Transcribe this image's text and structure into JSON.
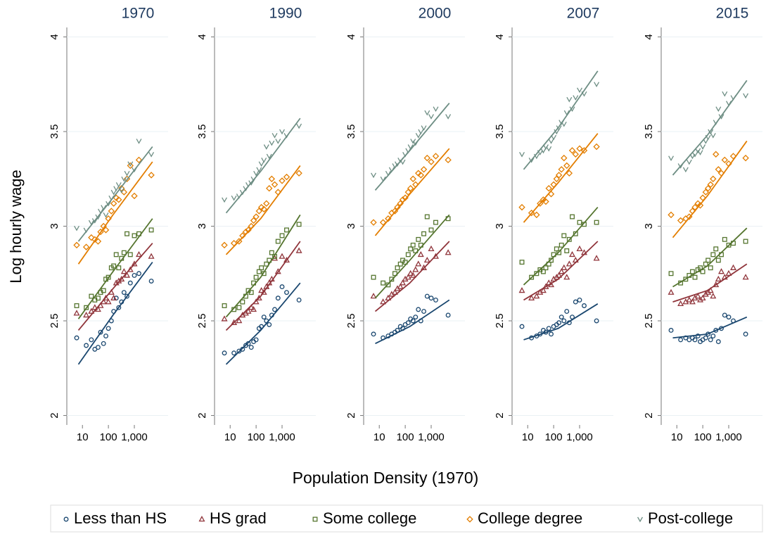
{
  "xlabel": "Population Density (1970)",
  "ylabel": "Log hourly wage",
  "legend": [
    {
      "name": "Less than HS",
      "color": "#1a476f",
      "marker": "circle"
    },
    {
      "name": "HS grad",
      "color": "#90353b",
      "marker": "triangle"
    },
    {
      "name": "Some college",
      "color": "#55752f",
      "marker": "square"
    },
    {
      "name": "College degree",
      "color": "#e37e00",
      "marker": "diamond"
    },
    {
      "name": "Post-college",
      "color": "#6e8e84",
      "marker": "v"
    }
  ],
  "chart_data": [
    {
      "type": "scatter",
      "title": "1970",
      "log_x": true,
      "xlim": [
        2.5,
        20000
      ],
      "xticks": [
        10,
        100,
        {
          "value": 1000,
          "label": "1,000"
        }
      ],
      "ylim": [
        1.95,
        4.05
      ],
      "yticks": [
        2,
        2.5,
        3,
        3.5,
        4
      ],
      "x": [
        6,
        14,
        22,
        30,
        40,
        50,
        65,
        80,
        100,
        130,
        160,
        200,
        250,
        320,
        400,
        520,
        700,
        1000,
        1500,
        4500
      ],
      "fit_x": [
        7,
        150,
        5000
      ],
      "series": [
        {
          "values": [
            2.41,
            2.37,
            2.4,
            2.35,
            2.36,
            2.44,
            2.38,
            2.42,
            2.46,
            2.5,
            2.55,
            2.62,
            2.57,
            2.6,
            2.65,
            2.63,
            2.7,
            2.74,
            2.75,
            2.71
          ],
          "fit": [
            2.27,
            2.53,
            2.81
          ]
        },
        {
          "values": [
            2.54,
            2.53,
            2.55,
            2.57,
            2.56,
            2.58,
            2.6,
            2.62,
            2.6,
            2.65,
            2.62,
            2.7,
            2.71,
            2.72,
            2.76,
            2.74,
            2.77,
            2.8,
            2.85,
            2.84
          ],
          "fit": [
            2.45,
            2.67,
            2.91
          ]
        },
        {
          "values": [
            2.58,
            2.57,
            2.63,
            2.61,
            2.62,
            2.65,
            2.66,
            2.72,
            2.73,
            2.78,
            2.79,
            2.85,
            2.78,
            2.83,
            2.86,
            2.96,
            2.85,
            2.95,
            2.96,
            2.98
          ],
          "fit": [
            2.51,
            2.76,
            3.04
          ]
        },
        {
          "values": [
            2.9,
            2.89,
            2.94,
            2.93,
            2.92,
            2.97,
            3.0,
            2.98,
            3.04,
            3.08,
            3.12,
            3.15,
            3.14,
            3.2,
            3.18,
            3.25,
            3.32,
            3.16,
            3.35,
            3.27
          ],
          "fit": [
            2.8,
            3.06,
            3.34
          ]
        },
        {
          "values": [
            2.99,
            2.98,
            3.02,
            3.03,
            3.05,
            3.08,
            3.1,
            3.06,
            3.12,
            3.15,
            3.18,
            3.2,
            3.22,
            3.19,
            3.25,
            3.28,
            3.33,
            3.3,
            3.45,
            3.38
          ],
          "fit": [
            2.92,
            3.15,
            3.42
          ]
        }
      ]
    },
    {
      "type": "scatter",
      "title": "1990",
      "log_x": true,
      "xlim": [
        2.5,
        20000
      ],
      "xticks": [
        10,
        100,
        {
          "value": 1000,
          "label": "1,000"
        }
      ],
      "ylim": [
        1.95,
        4.05
      ],
      "yticks": [
        2,
        2.5,
        3,
        3.5,
        4
      ],
      "x": [
        6,
        14,
        22,
        30,
        40,
        50,
        65,
        80,
        100,
        130,
        160,
        200,
        250,
        320,
        400,
        520,
        700,
        1000,
        1500,
        4500
      ],
      "fit_x": [
        7,
        150,
        5000
      ],
      "series": [
        {
          "values": [
            2.33,
            2.33,
            2.34,
            2.35,
            2.37,
            2.38,
            2.36,
            2.39,
            2.4,
            2.46,
            2.47,
            2.52,
            2.5,
            2.48,
            2.53,
            2.56,
            2.62,
            2.68,
            2.65,
            2.61
          ],
          "fit": [
            2.27,
            2.45,
            2.7
          ]
        },
        {
          "values": [
            2.51,
            2.49,
            2.5,
            2.53,
            2.54,
            2.55,
            2.57,
            2.56,
            2.6,
            2.62,
            2.66,
            2.65,
            2.68,
            2.7,
            2.72,
            2.83,
            2.76,
            2.84,
            2.82,
            2.87
          ],
          "fit": [
            2.45,
            2.63,
            2.92
          ]
        },
        {
          "values": [
            2.58,
            2.56,
            2.57,
            2.6,
            2.63,
            2.66,
            2.65,
            2.7,
            2.73,
            2.76,
            2.78,
            2.75,
            2.8,
            2.82,
            2.86,
            2.84,
            2.92,
            2.95,
            2.98,
            3.01
          ],
          "fit": [
            2.52,
            2.73,
            3.06
          ]
        },
        {
          "values": [
            2.9,
            2.91,
            2.92,
            2.95,
            2.97,
            2.98,
            3.0,
            3.03,
            3.05,
            3.08,
            3.1,
            3.09,
            3.12,
            3.2,
            3.25,
            3.22,
            3.18,
            3.24,
            3.26,
            3.28
          ],
          "fit": [
            2.85,
            3.04,
            3.32
          ]
        },
        {
          "values": [
            3.14,
            3.15,
            3.16,
            3.18,
            3.2,
            3.22,
            3.23,
            3.25,
            3.28,
            3.3,
            3.33,
            3.35,
            3.42,
            3.37,
            3.44,
            3.48,
            3.45,
            3.5,
            3.48,
            3.53
          ],
          "fit": [
            3.07,
            3.29,
            3.57
          ]
        }
      ]
    },
    {
      "type": "scatter",
      "title": "2000",
      "log_x": true,
      "xlim": [
        2.5,
        20000
      ],
      "xticks": [
        10,
        100,
        {
          "value": 1000,
          "label": "1,000"
        }
      ],
      "ylim": [
        1.95,
        4.05
      ],
      "yticks": [
        2,
        2.5,
        3,
        3.5,
        4
      ],
      "x": [
        6,
        14,
        22,
        30,
        40,
        50,
        65,
        80,
        100,
        130,
        160,
        200,
        250,
        320,
        400,
        520,
        700,
        1000,
        1500,
        4500
      ],
      "fit_x": [
        7,
        150,
        5000
      ],
      "series": [
        {
          "values": [
            2.43,
            2.41,
            2.42,
            2.43,
            2.44,
            2.45,
            2.47,
            2.46,
            2.48,
            2.49,
            2.51,
            2.5,
            2.52,
            2.56,
            2.5,
            2.55,
            2.63,
            2.62,
            2.61,
            2.53
          ],
          "fit": [
            2.38,
            2.47,
            2.61
          ]
        },
        {
          "values": [
            2.63,
            2.6,
            2.62,
            2.64,
            2.65,
            2.67,
            2.68,
            2.7,
            2.72,
            2.73,
            2.75,
            2.74,
            2.77,
            2.8,
            2.85,
            2.78,
            2.82,
            2.88,
            2.84,
            2.86
          ],
          "fit": [
            2.55,
            2.7,
            2.92
          ]
        },
        {
          "values": [
            2.73,
            2.7,
            2.69,
            2.72,
            2.75,
            2.78,
            2.8,
            2.82,
            2.81,
            2.85,
            2.88,
            2.9,
            2.87,
            2.93,
            2.9,
            2.96,
            3.05,
            2.98,
            3.02,
            3.04
          ],
          "fit": [
            2.62,
            2.82,
            3.06
          ]
        },
        {
          "values": [
            3.02,
            3.02,
            3.04,
            3.07,
            3.08,
            3.1,
            3.12,
            3.14,
            3.15,
            3.18,
            3.2,
            3.25,
            3.22,
            3.28,
            3.27,
            3.3,
            3.36,
            3.34,
            3.37,
            3.35
          ],
          "fit": [
            2.95,
            3.17,
            3.41
          ]
        },
        {
          "values": [
            3.27,
            3.25,
            3.28,
            3.3,
            3.32,
            3.33,
            3.35,
            3.34,
            3.38,
            3.4,
            3.42,
            3.45,
            3.44,
            3.48,
            3.5,
            3.52,
            3.6,
            3.58,
            3.62,
            3.58
          ],
          "fit": [
            3.19,
            3.4,
            3.65
          ]
        }
      ]
    },
    {
      "type": "scatter",
      "title": "2007",
      "log_x": true,
      "xlim": [
        2.5,
        20000
      ],
      "xticks": [
        10,
        100,
        {
          "value": 1000,
          "label": "1,000"
        }
      ],
      "ylim": [
        1.95,
        4.05
      ],
      "yticks": [
        2,
        2.5,
        3,
        3.5,
        4
      ],
      "x": [
        6,
        14,
        22,
        30,
        40,
        50,
        65,
        80,
        100,
        130,
        160,
        200,
        250,
        320,
        400,
        520,
        700,
        1000,
        1500,
        4500
      ],
      "fit_x": [
        7,
        150,
        5000
      ],
      "series": [
        {
          "values": [
            2.47,
            2.41,
            2.42,
            2.43,
            2.45,
            2.44,
            2.46,
            2.43,
            2.47,
            2.48,
            2.49,
            2.52,
            2.5,
            2.55,
            2.49,
            2.52,
            2.6,
            2.61,
            2.58,
            2.5
          ],
          "fit": [
            2.4,
            2.46,
            2.59
          ]
        },
        {
          "values": [
            2.66,
            2.62,
            2.63,
            2.65,
            2.66,
            2.68,
            2.7,
            2.69,
            2.72,
            2.73,
            2.74,
            2.76,
            2.78,
            2.73,
            2.8,
            2.85,
            2.82,
            2.88,
            2.86,
            2.83
          ],
          "fit": [
            2.61,
            2.72,
            2.92
          ]
        },
        {
          "values": [
            2.81,
            2.73,
            2.75,
            2.77,
            2.76,
            2.78,
            2.8,
            2.82,
            2.85,
            2.88,
            2.86,
            2.9,
            2.95,
            2.87,
            2.93,
            3.05,
            2.96,
            3.02,
            3.01,
            3.02
          ],
          "fit": [
            2.69,
            2.86,
            3.1
          ]
        },
        {
          "values": [
            3.1,
            3.07,
            3.06,
            3.12,
            3.14,
            3.13,
            3.2,
            3.17,
            3.22,
            3.25,
            3.27,
            3.3,
            3.36,
            3.32,
            3.28,
            3.4,
            3.38,
            3.41,
            3.4,
            3.42
          ],
          "fit": [
            3.02,
            3.23,
            3.49
          ]
        },
        {
          "values": [
            3.38,
            3.35,
            3.37,
            3.39,
            3.4,
            3.42,
            3.41,
            3.45,
            3.47,
            3.5,
            3.52,
            3.55,
            3.54,
            3.6,
            3.67,
            3.62,
            3.68,
            3.72,
            3.7,
            3.75
          ],
          "fit": [
            3.3,
            3.52,
            3.82
          ]
        }
      ]
    },
    {
      "type": "scatter",
      "title": "2015",
      "log_x": true,
      "xlim": [
        2.5,
        20000
      ],
      "xticks": [
        10,
        100,
        {
          "value": 1000,
          "label": "1,000"
        }
      ],
      "ylim": [
        1.95,
        4.05
      ],
      "yticks": [
        2,
        2.5,
        3,
        3.5,
        4
      ],
      "x": [
        6,
        14,
        22,
        30,
        40,
        50,
        65,
        80,
        100,
        130,
        160,
        200,
        250,
        320,
        400,
        520,
        700,
        1000,
        1500,
        4500
      ],
      "fit_x": [
        7,
        150,
        5000
      ],
      "series": [
        {
          "values": [
            2.45,
            2.4,
            2.41,
            2.4,
            2.41,
            2.4,
            2.42,
            2.39,
            2.4,
            2.41,
            2.43,
            2.4,
            2.42,
            2.45,
            2.39,
            2.46,
            2.53,
            2.52,
            2.5,
            2.43
          ],
          "fit": [
            2.41,
            2.43,
            2.52
          ]
        },
        {
          "values": [
            2.65,
            2.59,
            2.6,
            2.61,
            2.6,
            2.62,
            2.63,
            2.61,
            2.62,
            2.64,
            2.65,
            2.66,
            2.63,
            2.69,
            2.72,
            2.76,
            2.73,
            2.75,
            2.78,
            2.73
          ],
          "fit": [
            2.6,
            2.66,
            2.8
          ]
        },
        {
          "values": [
            2.75,
            2.7,
            2.72,
            2.74,
            2.76,
            2.73,
            2.77,
            2.78,
            2.76,
            2.8,
            2.82,
            2.78,
            2.85,
            2.88,
            2.82,
            2.85,
            2.93,
            2.9,
            2.91,
            2.92
          ],
          "fit": [
            2.68,
            2.79,
            2.99
          ]
        },
        {
          "values": [
            3.06,
            3.03,
            3.04,
            3.05,
            3.08,
            3.1,
            3.12,
            3.11,
            3.15,
            3.18,
            3.2,
            3.22,
            3.25,
            3.38,
            3.3,
            3.28,
            3.35,
            3.33,
            3.37,
            3.36
          ],
          "fit": [
            2.94,
            3.16,
            3.45
          ]
        },
        {
          "values": [
            3.36,
            3.32,
            3.3,
            3.34,
            3.37,
            3.38,
            3.4,
            3.39,
            3.42,
            3.45,
            3.47,
            3.5,
            3.48,
            3.55,
            3.62,
            3.58,
            3.7,
            3.65,
            3.68,
            3.69
          ],
          "fit": [
            3.27,
            3.48,
            3.77
          ]
        }
      ]
    }
  ]
}
